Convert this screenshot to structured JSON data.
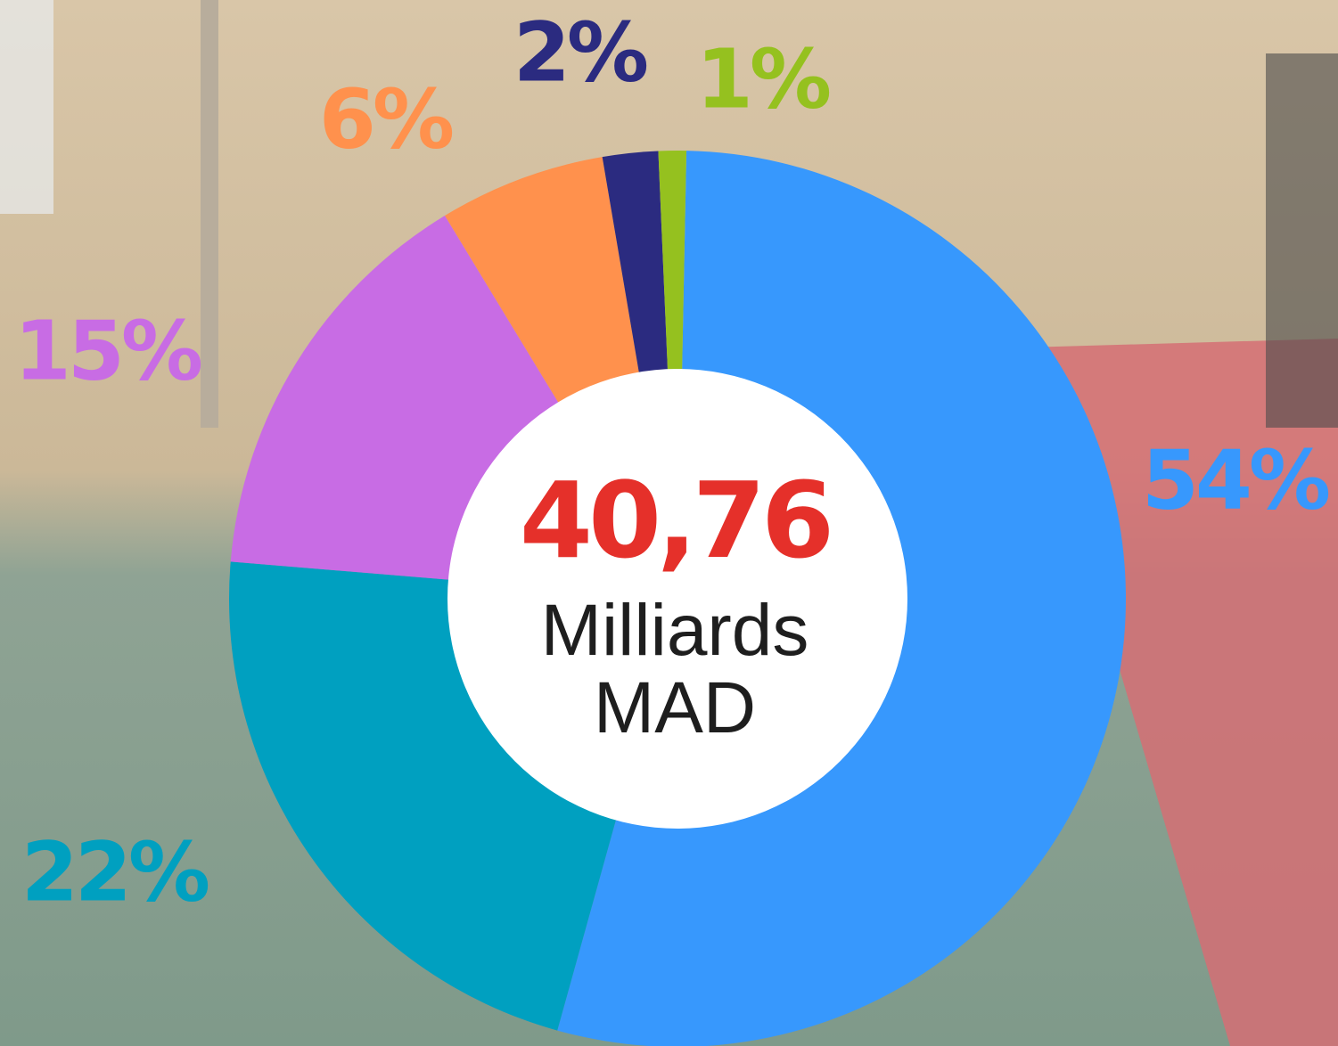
{
  "chart_data": {
    "type": "pie",
    "categories": [
      null,
      null,
      null,
      null,
      null,
      null
    ],
    "values": [
      54,
      22,
      15,
      6,
      2,
      1
    ],
    "value_labels": [
      "54%",
      "22%",
      "15%",
      "6%",
      "2%",
      "1%"
    ],
    "colors": [
      "#3798fd",
      "#00a0c0",
      "#c86ce4",
      "#ff914d",
      "#2b2b80",
      "#95c11f"
    ],
    "center_value": "40,76",
    "center_text": [
      "Milliards",
      "MAD"
    ]
  }
}
